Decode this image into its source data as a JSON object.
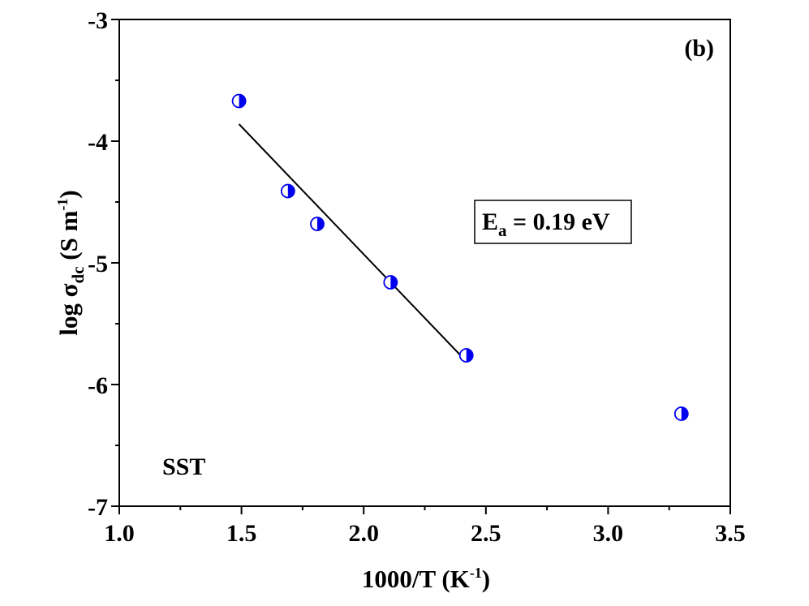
{
  "chart_data": {
    "type": "scatter",
    "panel_label": "(b)",
    "sample_label": "SST",
    "xlabel": {
      "main": "1000/T (K",
      "sup": "-1",
      "close": ")"
    },
    "ylabel": {
      "prefix": "log σ",
      "sub": "dc",
      "mid": " (S m",
      "sup": "-1",
      "close": ")"
    },
    "xlim": [
      1.0,
      3.5
    ],
    "ylim": [
      -7,
      -3
    ],
    "x_ticks": [
      1.0,
      1.5,
      2.0,
      2.5,
      3.0,
      3.5
    ],
    "x_tick_labels": [
      "1.0",
      "1.5",
      "2.0",
      "2.5",
      "3.0",
      "3.5"
    ],
    "y_ticks": [
      -3,
      -4,
      -5,
      -6,
      -7
    ],
    "y_tick_labels": [
      "-3",
      "-4",
      "-5",
      "-6",
      "-7"
    ],
    "series": [
      {
        "name": "SST",
        "marker": "half-filled-circle",
        "color": "#0000ee",
        "points": [
          {
            "x": 1.49,
            "y": -3.67
          },
          {
            "x": 1.69,
            "y": -4.41
          },
          {
            "x": 1.81,
            "y": -4.68
          },
          {
            "x": 2.11,
            "y": -5.16
          },
          {
            "x": 2.42,
            "y": -5.76
          },
          {
            "x": 3.3,
            "y": -6.24
          }
        ]
      }
    ],
    "fit_line": {
      "x": [
        1.49,
        2.42
      ],
      "y": [
        -3.86,
        -5.81
      ],
      "color": "#000000"
    },
    "annotation": {
      "symbol": "E",
      "sub": "a",
      "rest": " = 0.19 eV"
    }
  }
}
